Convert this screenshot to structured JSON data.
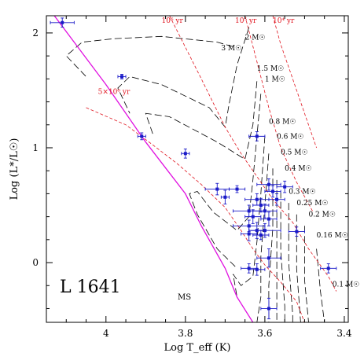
{
  "chart_data": {
    "type": "scatter",
    "xlabel": "Log T_eff (K)",
    "ylabel": "Log (L*/L☉)",
    "xlim": [
      4.15,
      3.39
    ],
    "ylim": [
      -0.52,
      2.15
    ],
    "x_ticks": [
      "4",
      "3.8",
      "3.6",
      "3.4"
    ],
    "x_tick_values": [
      4.0,
      3.8,
      3.6,
      3.4
    ],
    "y_ticks": [
      "2",
      "1",
      "0"
    ],
    "y_tick_values": [
      2,
      1,
      0
    ],
    "region_label": "L 1641",
    "ms_label": "MS",
    "colors": {
      "data": "#1a1ac8",
      "ms": "#e010e0",
      "isochrone": "#e0141e",
      "track": "#000000"
    },
    "main_sequence": [
      [
        4.13,
        2.15
      ],
      [
        4.0,
        1.55
      ],
      [
        3.9,
        1.05
      ],
      [
        3.8,
        0.6
      ],
      [
        3.76,
        0.32
      ],
      [
        3.7,
        -0.05
      ],
      [
        3.67,
        -0.3
      ],
      [
        3.63,
        -0.52
      ]
    ],
    "isochrones": [
      {
        "label": "10⁶ yr",
        "points": [
          [
            3.84,
            2.15
          ],
          [
            3.76,
            1.6
          ],
          [
            3.7,
            1.18
          ],
          [
            3.66,
            0.95
          ],
          [
            3.62,
            0.75
          ],
          [
            3.58,
            0.55
          ],
          [
            3.53,
            0.35
          ],
          [
            3.49,
            0.12
          ],
          [
            3.44,
            -0.12
          ],
          [
            3.42,
            -0.25
          ]
        ]
      },
      {
        "label": "10⁵ yr",
        "points": [
          [
            3.65,
            2.15
          ],
          [
            3.62,
            1.75
          ],
          [
            3.59,
            1.35
          ],
          [
            3.56,
            1.0
          ],
          [
            3.52,
            0.7
          ],
          [
            3.48,
            0.45
          ]
        ]
      },
      {
        "label": "10⁴ yr",
        "points": [
          [
            3.58,
            2.15
          ],
          [
            3.56,
            1.9
          ],
          [
            3.53,
            1.6
          ],
          [
            3.5,
            1.3
          ],
          [
            3.47,
            1.0
          ]
        ]
      },
      {
        "label": "5×10⁶ yr",
        "points": [
          [
            4.05,
            1.35
          ],
          [
            3.95,
            1.2
          ],
          [
            3.88,
            1.02
          ],
          [
            3.82,
            0.86
          ],
          [
            3.76,
            0.68
          ],
          [
            3.7,
            0.48
          ],
          [
            3.66,
            0.28
          ],
          [
            3.63,
            0.12
          ],
          [
            3.6,
            -0.02
          ],
          [
            3.56,
            -0.17
          ],
          [
            3.52,
            -0.34
          ],
          [
            3.5,
            -0.52
          ]
        ]
      }
    ],
    "tracks": [
      {
        "label": "3 M☉",
        "points": [
          [
            3.68,
            1.88
          ],
          [
            3.72,
            1.92
          ],
          [
            3.86,
            1.97
          ],
          [
            3.98,
            1.95
          ],
          [
            4.06,
            1.92
          ],
          [
            4.1,
            1.8
          ],
          [
            4.05,
            1.62
          ]
        ]
      },
      {
        "label": "2 M☉",
        "points": [
          [
            3.64,
            2.05
          ],
          [
            3.67,
            1.72
          ],
          [
            3.69,
            1.38
          ],
          [
            3.7,
            1.18
          ],
          [
            3.74,
            1.35
          ],
          [
            3.86,
            1.55
          ],
          [
            3.94,
            1.62
          ],
          [
            3.97,
            1.52
          ],
          [
            3.94,
            1.3
          ]
        ]
      },
      {
        "label": "1.5 M☉",
        "points": [
          [
            3.62,
            1.58
          ],
          [
            3.63,
            1.2
          ],
          [
            3.65,
            0.9
          ],
          [
            3.72,
            1.05
          ],
          [
            3.84,
            1.27
          ],
          [
            3.9,
            1.3
          ],
          [
            3.88,
            1.1
          ]
        ]
      },
      {
        "label": "1 M☉",
        "points": [
          [
            3.61,
            1.47
          ],
          [
            3.62,
            1.1
          ],
          [
            3.63,
            0.72
          ],
          [
            3.64,
            0.4
          ],
          [
            3.67,
            0.28
          ],
          [
            3.73,
            0.44
          ],
          [
            3.77,
            0.62
          ],
          [
            3.79,
            0.6
          ],
          [
            3.77,
            0.42
          ],
          [
            3.72,
            0.12
          ],
          [
            3.67,
            -0.05
          ]
        ]
      },
      {
        "label": "0.8 M☉",
        "points": [
          [
            3.6,
            1.1
          ],
          [
            3.61,
            0.6
          ],
          [
            3.62,
            0.18
          ],
          [
            3.63,
            -0.12
          ],
          [
            3.66,
            -0.2
          ],
          [
            3.68,
            -0.1
          ],
          [
            3.67,
            -0.3
          ]
        ]
      },
      {
        "label": "0.6 M☉",
        "points": [
          [
            3.59,
            0.95
          ],
          [
            3.6,
            0.5
          ],
          [
            3.61,
            0.05
          ],
          [
            3.61,
            -0.3
          ],
          [
            3.62,
            -0.52
          ]
        ]
      },
      {
        "label": "0.5 M☉",
        "points": [
          [
            3.58,
            0.82
          ],
          [
            3.58,
            0.3
          ],
          [
            3.59,
            -0.2
          ],
          [
            3.59,
            -0.52
          ]
        ]
      },
      {
        "label": "0.4 M☉",
        "points": [
          [
            3.57,
            0.72
          ],
          [
            3.57,
            0.2
          ],
          [
            3.57,
            -0.3
          ],
          [
            3.57,
            -0.52
          ]
        ]
      },
      {
        "label": "0.3 M☉",
        "points": [
          [
            3.56,
            0.62
          ],
          [
            3.56,
            0.1
          ],
          [
            3.55,
            -0.38
          ],
          [
            3.55,
            -0.52
          ]
        ]
      },
      {
        "label": "0.25 M☉",
        "points": [
          [
            3.54,
            0.52
          ],
          [
            3.54,
            0.0
          ],
          [
            3.53,
            -0.45
          ],
          [
            3.53,
            -0.52
          ]
        ]
      },
      {
        "label": "0.2 M☉",
        "points": [
          [
            3.52,
            0.42
          ],
          [
            3.52,
            -0.05
          ],
          [
            3.51,
            -0.52
          ]
        ]
      },
      {
        "label": "0.16 M☉",
        "points": [
          [
            3.5,
            0.32
          ],
          [
            3.5,
            -0.15
          ],
          [
            3.49,
            -0.52
          ]
        ]
      },
      {
        "label": "0.1 M☉",
        "points": [
          [
            3.47,
            0.12
          ],
          [
            3.46,
            -0.25
          ],
          [
            3.45,
            -0.52
          ]
        ]
      }
    ],
    "points": [
      {
        "x": 4.11,
        "y": 2.09,
        "xerr": 0.03,
        "yerr": 0.04
      },
      {
        "x": 3.96,
        "y": 1.62,
        "xerr": 0.01,
        "yerr": 0.02
      },
      {
        "x": 3.91,
        "y": 1.1,
        "xerr": 0.01,
        "yerr": 0.03
      },
      {
        "x": 3.8,
        "y": 0.95,
        "xerr": 0.01,
        "yerr": 0.04
      },
      {
        "x": 3.72,
        "y": 0.64,
        "xerr": 0.03,
        "yerr": 0.05
      },
      {
        "x": 3.7,
        "y": 0.57,
        "xerr": 0.01,
        "yerr": 0.06
      },
      {
        "x": 3.67,
        "y": 0.64,
        "xerr": 0.02,
        "yerr": 0.03
      },
      {
        "x": 3.62,
        "y": 1.1,
        "xerr": 0.02,
        "yerr": 0.04
      },
      {
        "x": 3.64,
        "y": 0.45,
        "xerr": 0.04,
        "yerr": 0.05
      },
      {
        "x": 3.63,
        "y": 0.4,
        "xerr": 0.02,
        "yerr": 0.06
      },
      {
        "x": 3.64,
        "y": 0.32,
        "xerr": 0.04,
        "yerr": 0.05
      },
      {
        "x": 3.62,
        "y": 0.55,
        "xerr": 0.03,
        "yerr": 0.05
      },
      {
        "x": 3.61,
        "y": 0.5,
        "xerr": 0.02,
        "yerr": 0.06
      },
      {
        "x": 3.6,
        "y": 0.45,
        "xerr": 0.03,
        "yerr": 0.06
      },
      {
        "x": 3.59,
        "y": 0.68,
        "xerr": 0.03,
        "yerr": 0.05
      },
      {
        "x": 3.58,
        "y": 0.62,
        "xerr": 0.02,
        "yerr": 0.05
      },
      {
        "x": 3.57,
        "y": 0.55,
        "xerr": 0.02,
        "yerr": 0.05
      },
      {
        "x": 3.55,
        "y": 0.66,
        "xerr": 0.02,
        "yerr": 0.05
      },
      {
        "x": 3.59,
        "y": 0.38,
        "xerr": 0.02,
        "yerr": 0.06
      },
      {
        "x": 3.62,
        "y": 0.28,
        "xerr": 0.02,
        "yerr": 0.07
      },
      {
        "x": 3.64,
        "y": 0.25,
        "xerr": 0.02,
        "yerr": 0.06
      },
      {
        "x": 3.61,
        "y": 0.24,
        "xerr": 0.02,
        "yerr": 0.04
      },
      {
        "x": 3.6,
        "y": 0.28,
        "xerr": 0.04,
        "yerr": 0.06
      },
      {
        "x": 3.52,
        "y": 0.27,
        "xerr": 0.02,
        "yerr": 0.04
      },
      {
        "x": 3.59,
        "y": 0.04,
        "xerr": 0.03,
        "yerr": 0.08
      },
      {
        "x": 3.64,
        "y": -0.05,
        "xerr": 0.02,
        "yerr": 0.04
      },
      {
        "x": 3.62,
        "y": -0.06,
        "xerr": 0.02,
        "yerr": 0.05
      },
      {
        "x": 3.44,
        "y": -0.05,
        "xerr": 0.02,
        "yerr": 0.04
      },
      {
        "x": 3.59,
        "y": -0.4,
        "xerr": 0.02,
        "yerr": 0.09
      }
    ]
  }
}
